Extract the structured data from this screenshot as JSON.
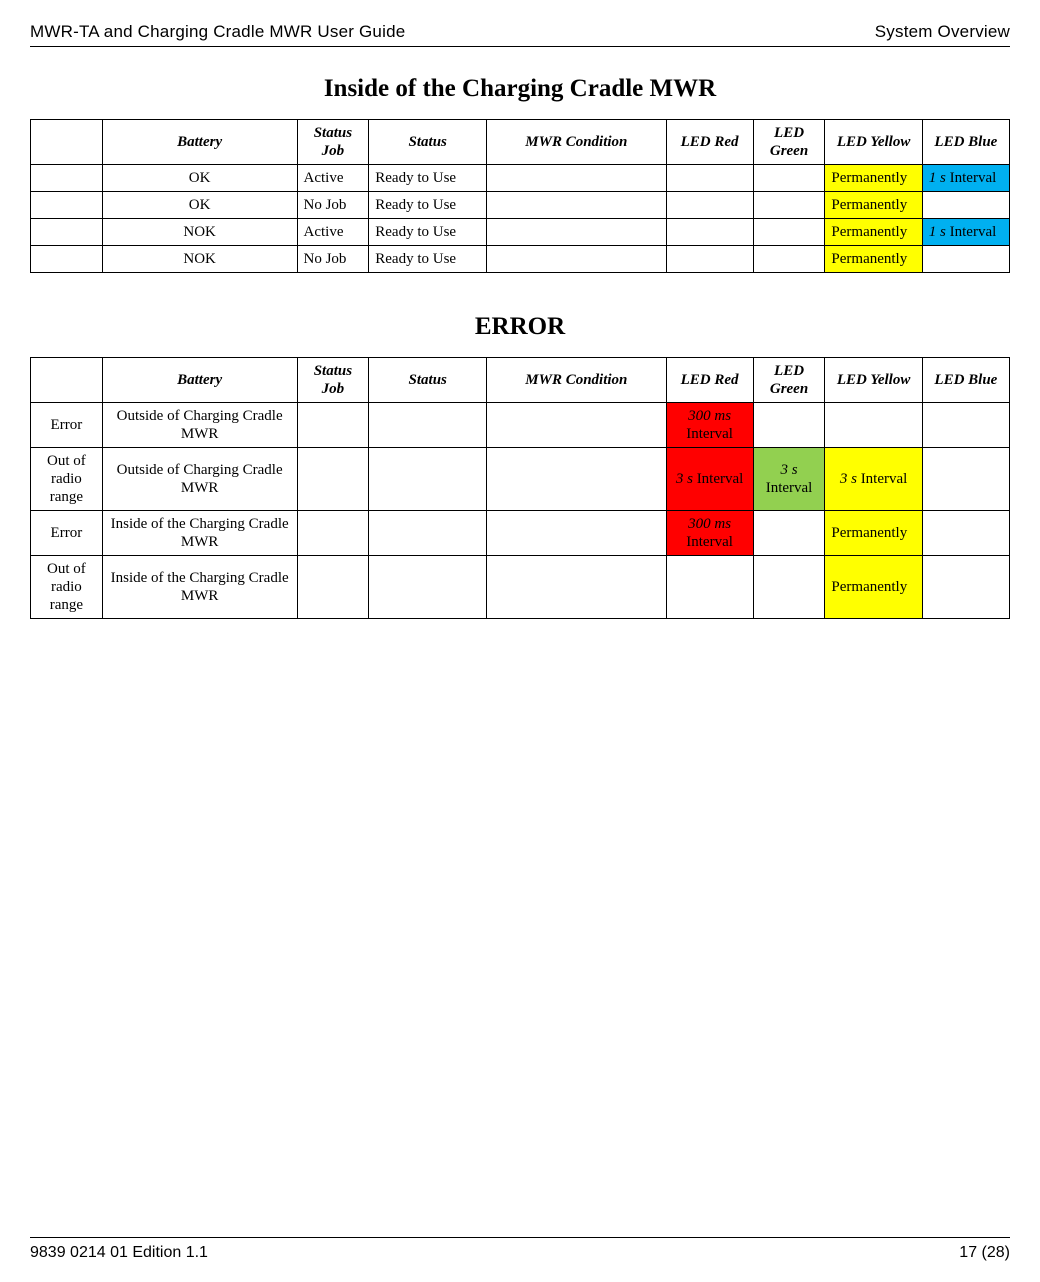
{
  "header": {
    "left": "MWR-TA and Charging Cradle MWR User Guide",
    "right": "System Overview"
  },
  "footer": {
    "left": "9839 0214 01 Edition 1.1",
    "right": "17 (28)"
  },
  "colors": {
    "yellow": "#ffff00",
    "blue": "#00b0f0",
    "red": "#ff0000",
    "green": "#92d050"
  },
  "columns": [
    "",
    "Battery",
    "Status Job",
    "Status",
    "MWR Condition",
    "LED Red",
    "LED Green",
    "LED Yellow",
    "LED Blue"
  ],
  "section1": {
    "title": "Inside of the Charging Cradle MWR",
    "col_classes": [
      "c0",
      "c1",
      "c2",
      "c3",
      "c4",
      "c5",
      "c6",
      "c7",
      "c8"
    ],
    "rows": [
      {
        "cells": [
          {
            "text": "",
            "align": "center"
          },
          {
            "text": "OK",
            "align": "center"
          },
          {
            "text": "Active",
            "align": "left"
          },
          {
            "text": "Ready to Use",
            "align": "left"
          },
          {
            "text": "",
            "align": "center"
          },
          {
            "text": "",
            "align": "center"
          },
          {
            "text": "",
            "align": "center"
          },
          {
            "text": "Permanently",
            "align": "left",
            "bg": "yellow"
          },
          {
            "text": "1 s Interval",
            "align": "left",
            "bg": "blue",
            "italic_prefix": "1 s"
          }
        ]
      },
      {
        "cells": [
          {
            "text": "",
            "align": "center"
          },
          {
            "text": "OK",
            "align": "center"
          },
          {
            "text": "No Job",
            "align": "left"
          },
          {
            "text": "Ready to Use",
            "align": "left"
          },
          {
            "text": "",
            "align": "center"
          },
          {
            "text": "",
            "align": "center"
          },
          {
            "text": "",
            "align": "center"
          },
          {
            "text": "Permanently",
            "align": "left",
            "bg": "yellow"
          },
          {
            "text": "",
            "align": "center"
          }
        ]
      },
      {
        "cells": [
          {
            "text": "",
            "align": "center"
          },
          {
            "text": "NOK",
            "align": "center"
          },
          {
            "text": "Active",
            "align": "left"
          },
          {
            "text": "Ready to Use",
            "align": "left"
          },
          {
            "text": "",
            "align": "center"
          },
          {
            "text": "",
            "align": "center"
          },
          {
            "text": "",
            "align": "center"
          },
          {
            "text": "Permanently",
            "align": "left",
            "bg": "yellow"
          },
          {
            "text": "1 s Interval",
            "align": "left",
            "bg": "blue",
            "italic_prefix": "1 s"
          }
        ]
      },
      {
        "cells": [
          {
            "text": "",
            "align": "center"
          },
          {
            "text": "NOK",
            "align": "center"
          },
          {
            "text": "No Job",
            "align": "left"
          },
          {
            "text": "Ready to Use",
            "align": "left"
          },
          {
            "text": "",
            "align": "center"
          },
          {
            "text": "",
            "align": "center"
          },
          {
            "text": "",
            "align": "center"
          },
          {
            "text": "Permanently",
            "align": "left",
            "bg": "yellow"
          },
          {
            "text": "",
            "align": "center"
          }
        ]
      }
    ]
  },
  "section2": {
    "title": "ERROR",
    "col_classes": [
      "c0",
      "c1",
      "c2",
      "c3",
      "c4",
      "c5",
      "c6",
      "c7",
      "c8"
    ],
    "rows": [
      {
        "cells": [
          {
            "text": "Error",
            "align": "center"
          },
          {
            "text": "Outside of Charging Cradle MWR",
            "align": "center"
          },
          {
            "text": "",
            "align": "center"
          },
          {
            "text": "",
            "align": "center"
          },
          {
            "text": "",
            "align": "center"
          },
          {
            "text": "300 ms Interval",
            "align": "center",
            "bg": "red",
            "italic_prefix": "300 ms"
          },
          {
            "text": "",
            "align": "center"
          },
          {
            "text": "",
            "align": "center"
          },
          {
            "text": "",
            "align": "center"
          }
        ]
      },
      {
        "cells": [
          {
            "text": "Out of radio range",
            "align": "center"
          },
          {
            "text": "Outside of Charging Cradle MWR",
            "align": "center"
          },
          {
            "text": "",
            "align": "center"
          },
          {
            "text": "",
            "align": "center"
          },
          {
            "text": "",
            "align": "center"
          },
          {
            "text": "3 s Interval",
            "align": "center",
            "bg": "red",
            "italic_prefix": "3 s"
          },
          {
            "text": "3 s Interval",
            "align": "center",
            "bg": "green",
            "italic_prefix": "3 s"
          },
          {
            "text": "3 s Interval",
            "align": "center",
            "bg": "yellow",
            "italic_prefix": "3 s"
          },
          {
            "text": "",
            "align": "center"
          }
        ]
      },
      {
        "cells": [
          {
            "text": "Error",
            "align": "center"
          },
          {
            "text": "Inside of the Charging Cradle MWR",
            "align": "center"
          },
          {
            "text": "",
            "align": "center"
          },
          {
            "text": "",
            "align": "center"
          },
          {
            "text": "",
            "align": "center"
          },
          {
            "text": "300 ms Interval",
            "align": "center",
            "bg": "red",
            "italic_prefix": "300 ms"
          },
          {
            "text": "",
            "align": "center"
          },
          {
            "text": "Permanently",
            "align": "left",
            "bg": "yellow"
          },
          {
            "text": "",
            "align": "center"
          }
        ]
      },
      {
        "cells": [
          {
            "text": "Out of radio range",
            "align": "center"
          },
          {
            "text": "Inside of the Charging Cradle MWR",
            "align": "center"
          },
          {
            "text": "",
            "align": "center"
          },
          {
            "text": "",
            "align": "center"
          },
          {
            "text": "",
            "align": "center"
          },
          {
            "text": "",
            "align": "center"
          },
          {
            "text": "",
            "align": "center"
          },
          {
            "text": "Permanently",
            "align": "left",
            "bg": "yellow"
          },
          {
            "text": "",
            "align": "center"
          }
        ]
      }
    ]
  }
}
